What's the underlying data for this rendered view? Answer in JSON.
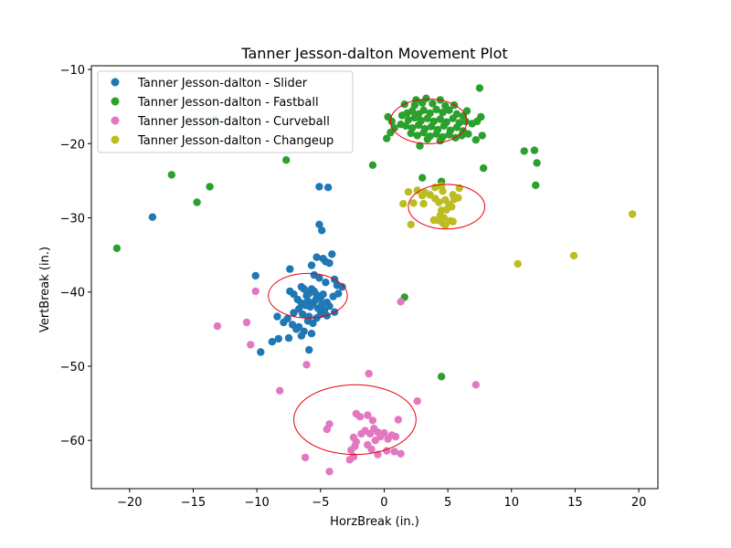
{
  "chart_data": {
    "type": "scatter",
    "title": "Tanner Jesson-dalton Movement Plot",
    "xlabel": "HorzBreak (in.)",
    "ylabel": "VertBreak (in.)",
    "xlim": [
      -23,
      21.5
    ],
    "ylim": [
      -66.5,
      -9.5
    ],
    "xticks": [
      -20,
      -15,
      -10,
      -5,
      0,
      5,
      10,
      15,
      20
    ],
    "yticks": [
      -60,
      -50,
      -40,
      -30,
      -20,
      -10
    ],
    "grid": false,
    "legend_position": "top-left",
    "series": [
      {
        "name": "Tanner Jesson-dalton - Slider",
        "color": "#1f77b4",
        "points": [
          [
            -18.2,
            -29.9
          ],
          [
            -5.1,
            -25.8
          ],
          [
            -4.4,
            -25.9
          ],
          [
            -5.1,
            -30.9
          ],
          [
            -4.9,
            -31.7
          ],
          [
            -4.1,
            -34.9
          ],
          [
            -5.3,
            -35.3
          ],
          [
            -4.8,
            -35.5
          ],
          [
            -4.6,
            -35.9
          ],
          [
            -4.3,
            -36.1
          ],
          [
            -7.4,
            -36.9
          ],
          [
            -5.7,
            -36.4
          ],
          [
            -5.5,
            -37.7
          ],
          [
            -5.1,
            -38.1
          ],
          [
            -3.9,
            -38.3
          ],
          [
            -4.6,
            -38.7
          ],
          [
            -3.7,
            -39.1
          ],
          [
            -3.3,
            -39.3
          ],
          [
            -10.1,
            -37.8
          ],
          [
            -6.5,
            -39.3
          ],
          [
            -6.3,
            -39.6
          ],
          [
            -7.4,
            -39.9
          ],
          [
            -7.1,
            -40.3
          ],
          [
            -6.1,
            -40.5
          ],
          [
            -5.9,
            -40.2
          ],
          [
            -5.7,
            -39.6
          ],
          [
            -5.5,
            -39.9
          ],
          [
            -5.3,
            -40.4
          ],
          [
            -5.0,
            -40.8
          ],
          [
            -4.8,
            -40.3
          ],
          [
            -6.8,
            -41.0
          ],
          [
            -6.5,
            -41.5
          ],
          [
            -6.2,
            -41.8
          ],
          [
            -6.0,
            -41.2
          ],
          [
            -5.8,
            -42.0
          ],
          [
            -5.6,
            -41.6
          ],
          [
            -5.4,
            -41.1
          ],
          [
            -5.2,
            -42.2
          ],
          [
            -4.9,
            -41.7
          ],
          [
            -4.7,
            -42.5
          ],
          [
            -4.5,
            -41.4
          ],
          [
            -6.7,
            -42.3
          ],
          [
            -7.1,
            -42.8
          ],
          [
            -6.4,
            -43.0
          ],
          [
            -5.9,
            -43.3
          ],
          [
            -5.0,
            -43.0
          ],
          [
            -4.5,
            -43.2
          ],
          [
            -7.6,
            -43.6
          ],
          [
            -7.9,
            -44.1
          ],
          [
            -7.2,
            -44.4
          ],
          [
            -6.7,
            -44.7
          ],
          [
            -6.0,
            -43.9
          ],
          [
            -5.6,
            -44.2
          ],
          [
            -5.3,
            -43.5
          ],
          [
            -8.4,
            -43.3
          ],
          [
            -6.9,
            -45.0
          ],
          [
            -6.3,
            -45.3
          ],
          [
            -5.7,
            -45.6
          ],
          [
            -6.5,
            -45.9
          ],
          [
            -7.5,
            -46.2
          ],
          [
            -8.3,
            -46.3
          ],
          [
            -8.8,
            -46.7
          ],
          [
            -5.9,
            -47.8
          ],
          [
            -9.7,
            -48.1
          ],
          [
            -4.0,
            -40.6
          ],
          [
            -4.3,
            -41.9
          ],
          [
            -3.6,
            -40.2
          ],
          [
            -3.9,
            -42.7
          ]
        ]
      },
      {
        "name": "Tanner Jesson-dalton - Fastball",
        "color": "#2ca02c",
        "points": [
          [
            -21.0,
            -34.1
          ],
          [
            -16.7,
            -24.2
          ],
          [
            -14.7,
            -27.9
          ],
          [
            -13.7,
            -25.8
          ],
          [
            -13.3,
            -16.8
          ],
          [
            -7.7,
            -22.2
          ],
          [
            -0.9,
            -22.9
          ],
          [
            1.6,
            -40.7
          ],
          [
            3.0,
            -24.6
          ],
          [
            4.5,
            -25.1
          ],
          [
            4.5,
            -51.4
          ],
          [
            7.5,
            -12.5
          ],
          [
            7.8,
            -23.3
          ],
          [
            11.0,
            -21.0
          ],
          [
            11.8,
            -20.9
          ],
          [
            11.9,
            -25.6
          ],
          [
            12.0,
            -22.6
          ],
          [
            2.8,
            -20.3
          ],
          [
            1.3,
            -17.4
          ],
          [
            0.5,
            -18.5
          ],
          [
            0.3,
            -16.4
          ],
          [
            0.8,
            -17.9
          ],
          [
            0.2,
            -19.3
          ],
          [
            7.2,
            -19.5
          ],
          [
            6.6,
            -18.7
          ],
          [
            7.7,
            -18.9
          ],
          [
            7.6,
            -16.4
          ],
          [
            1.6,
            -14.7
          ],
          [
            2.5,
            -14.1
          ],
          [
            3.3,
            -13.9
          ],
          [
            4.4,
            -14.1
          ],
          [
            5.5,
            -14.8
          ],
          [
            6.5,
            -15.6
          ],
          [
            1.8,
            -15.9
          ],
          [
            2.2,
            -15.6
          ],
          [
            2.7,
            -16.0
          ],
          [
            3.1,
            -15.5
          ],
          [
            3.6,
            -15.9
          ],
          [
            4.1,
            -15.4
          ],
          [
            4.6,
            -15.8
          ],
          [
            5.1,
            -15.5
          ],
          [
            5.7,
            -16.0
          ],
          [
            6.2,
            -16.3
          ],
          [
            1.9,
            -16.8
          ],
          [
            2.4,
            -16.5
          ],
          [
            2.9,
            -16.9
          ],
          [
            3.4,
            -16.6
          ],
          [
            3.9,
            -17.0
          ],
          [
            4.4,
            -16.7
          ],
          [
            4.9,
            -17.1
          ],
          [
            5.4,
            -16.6
          ],
          [
            5.9,
            -17.2
          ],
          [
            6.4,
            -17.0
          ],
          [
            6.9,
            -17.3
          ],
          [
            1.7,
            -17.6
          ],
          [
            2.2,
            -17.9
          ],
          [
            2.7,
            -17.5
          ],
          [
            3.2,
            -18.0
          ],
          [
            3.7,
            -17.7
          ],
          [
            4.2,
            -18.1
          ],
          [
            4.7,
            -17.6
          ],
          [
            5.2,
            -18.2
          ],
          [
            5.7,
            -17.8
          ],
          [
            6.2,
            -18.3
          ],
          [
            2.1,
            -18.6
          ],
          [
            2.6,
            -18.9
          ],
          [
            3.1,
            -18.5
          ],
          [
            3.6,
            -19.0
          ],
          [
            4.1,
            -18.7
          ],
          [
            4.6,
            -19.1
          ],
          [
            5.1,
            -18.8
          ],
          [
            5.6,
            -19.2
          ],
          [
            6.1,
            -18.9
          ],
          [
            2.4,
            -14.8
          ],
          [
            3.0,
            -14.5
          ],
          [
            3.8,
            -14.6
          ],
          [
            4.8,
            -14.9
          ],
          [
            1.4,
            -16.2
          ],
          [
            7.3,
            -17.0
          ],
          [
            0.6,
            -17.0
          ],
          [
            3.4,
            -19.4
          ],
          [
            4.4,
            -19.6
          ]
        ]
      },
      {
        "name": "Tanner Jesson-dalton - Curveball",
        "color": "#e377c2",
        "points": [
          [
            -13.1,
            -44.6
          ],
          [
            -10.8,
            -44.1
          ],
          [
            -10.5,
            -47.1
          ],
          [
            -10.1,
            -39.9
          ],
          [
            -8.2,
            -53.3
          ],
          [
            -6.1,
            -49.8
          ],
          [
            1.3,
            -41.3
          ],
          [
            2.6,
            -54.7
          ],
          [
            7.2,
            -52.5
          ],
          [
            -1.2,
            -51.0
          ],
          [
            -4.5,
            -58.5
          ],
          [
            -4.3,
            -57.8
          ],
          [
            -2.2,
            -56.4
          ],
          [
            -1.9,
            -56.8
          ],
          [
            -1.3,
            -56.6
          ],
          [
            -0.9,
            -57.3
          ],
          [
            -1.5,
            -58.7
          ],
          [
            -1.1,
            -59.1
          ],
          [
            -0.8,
            -58.4
          ],
          [
            -0.5,
            -58.9
          ],
          [
            -0.3,
            -59.5
          ],
          [
            0.0,
            -59.0
          ],
          [
            0.3,
            -59.8
          ],
          [
            0.6,
            -59.3
          ],
          [
            0.9,
            -59.5
          ],
          [
            1.1,
            -57.2
          ],
          [
            -2.4,
            -59.6
          ],
          [
            -2.2,
            -60.2
          ],
          [
            -2.3,
            -60.8
          ],
          [
            -1.3,
            -60.6
          ],
          [
            -1.0,
            -61.2
          ],
          [
            -0.5,
            -61.9
          ],
          [
            0.2,
            -61.4
          ],
          [
            0.8,
            -61.5
          ],
          [
            1.3,
            -61.8
          ],
          [
            -2.6,
            -61.3
          ],
          [
            -2.4,
            -62.2
          ],
          [
            -2.7,
            -62.6
          ],
          [
            -6.2,
            -62.3
          ],
          [
            -4.3,
            -64.2
          ],
          [
            -1.8,
            -59.1
          ],
          [
            -0.7,
            -60.0
          ]
        ]
      },
      {
        "name": "Tanner Jesson-dalton - Changeup",
        "color": "#bcbd22",
        "points": [
          [
            1.5,
            -28.1
          ],
          [
            1.9,
            -26.5
          ],
          [
            2.3,
            -28.0
          ],
          [
            2.1,
            -30.9
          ],
          [
            2.6,
            -26.3
          ],
          [
            3.0,
            -27.0
          ],
          [
            3.1,
            -28.1
          ],
          [
            3.2,
            -26.6
          ],
          [
            3.6,
            -26.9
          ],
          [
            4.0,
            -27.4
          ],
          [
            4.3,
            -27.9
          ],
          [
            4.0,
            -25.9
          ],
          [
            4.5,
            -25.7
          ],
          [
            4.6,
            -26.4
          ],
          [
            4.8,
            -27.6
          ],
          [
            5.1,
            -28.2
          ],
          [
            5.4,
            -26.9
          ],
          [
            5.5,
            -27.5
          ],
          [
            5.8,
            -27.3
          ],
          [
            5.9,
            -26.0
          ],
          [
            5.3,
            -28.5
          ],
          [
            4.9,
            -28.9
          ],
          [
            4.5,
            -29.0
          ],
          [
            4.4,
            -29.7
          ],
          [
            4.2,
            -30.3
          ],
          [
            4.7,
            -30.0
          ],
          [
            4.6,
            -30.7
          ],
          [
            4.8,
            -31.0
          ],
          [
            5.2,
            -30.4
          ],
          [
            5.4,
            -30.5
          ],
          [
            3.9,
            -30.3
          ],
          [
            10.5,
            -36.2
          ],
          [
            14.9,
            -35.1
          ],
          [
            19.5,
            -29.5
          ]
        ]
      }
    ],
    "ellipses": [
      {
        "series": "Slider",
        "cx": -6.0,
        "cy": -40.5,
        "rx": 3.1,
        "ry": 3.0
      },
      {
        "series": "Fastball",
        "cx": 3.5,
        "cy": -17.0,
        "rx": 3.0,
        "ry": 3.0
      },
      {
        "series": "Curveball",
        "cx": -2.3,
        "cy": -57.2,
        "rx": 4.8,
        "ry": 4.7
      },
      {
        "series": "Changeup",
        "cx": 4.9,
        "cy": -28.5,
        "rx": 3.0,
        "ry": 3.0
      }
    ],
    "ellipse_color": "#e8000b"
  }
}
